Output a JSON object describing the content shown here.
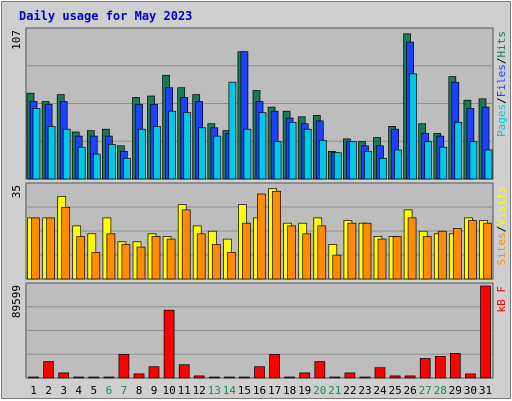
{
  "chart_data": {
    "title": "Daily usage for May 2023",
    "type": "bar",
    "days": [
      "1",
      "2",
      "3",
      "4",
      "5",
      "6",
      "7",
      "8",
      "9",
      "10",
      "11",
      "12",
      "13",
      "14",
      "15",
      "16",
      "17",
      "18",
      "19",
      "20",
      "21",
      "22",
      "23",
      "24",
      "25",
      "26",
      "27",
      "28",
      "29",
      "30",
      "31"
    ],
    "weekend_days": [
      "6",
      "7",
      "13",
      "14",
      "20",
      "21",
      "27",
      "28"
    ],
    "colors": {
      "title": "#0000cc",
      "pages": "#00c8e6",
      "files": "#1e40ff",
      "hits": "#1a7a55",
      "sites": "#ff8c00",
      "visits": "#ffff00",
      "kb": "#ff0000",
      "weekday": "#000000",
      "weekend": "#1a8a50"
    },
    "panels": [
      {
        "name": "hits-files-pages",
        "max_label": "107",
        "ymax": 107,
        "series": [
          {
            "name": "Hits",
            "color": "#1a7a55",
            "values": [
              62,
              56,
              61,
              34,
              35,
              36,
              24,
              59,
              60,
              75,
              66,
              61,
              40,
              35,
              92,
              64,
              52,
              49,
              45,
              46,
              20,
              29,
              27,
              30,
              38,
              105,
              40,
              33,
              74,
              57,
              58
            ]
          },
          {
            "name": "Files",
            "color": "#1e40ff",
            "values": [
              56,
              54,
              56,
              31,
              31,
              31,
              20,
              54,
              54,
              66,
              59,
              56,
              37,
              33,
              92,
              56,
              49,
              44,
              40,
              42,
              19,
              27,
              24,
              24,
              36,
              99,
              33,
              31,
              70,
              51,
              52
            ]
          },
          {
            "name": "Pages",
            "color": "#00c8e6",
            "values": [
              51,
              38,
              36,
              23,
              18,
              25,
              15,
              36,
              38,
              49,
              48,
              37,
              31,
              70,
              36,
              48,
              27,
              41,
              36,
              28,
              19,
              27,
              20,
              15,
              21,
              76,
              27,
              23,
              41,
              27,
              21
            ]
          }
        ],
        "legend": [
          {
            "text": "Pages",
            "color": "#00c8e6"
          },
          {
            "text": "/",
            "color": "#000000"
          },
          {
            "text": "Files",
            "color": "#1e40ff"
          },
          {
            "text": "/",
            "color": "#000000"
          },
          {
            "text": "Hits",
            "color": "#1a7a55"
          }
        ]
      },
      {
        "name": "sites-visits",
        "max_label": "35",
        "ymax": 35,
        "series": [
          {
            "name": "Visits",
            "color": "#ffff00",
            "values": [
              23,
              23,
              31,
              20,
              17,
              23,
              14,
              14,
              17,
              16,
              28,
              20,
              18,
              15,
              28,
              23,
              34,
              21,
              21,
              23,
              13,
              22,
              21,
              16,
              16,
              26,
              18,
              17,
              17,
              23,
              22
            ]
          },
          {
            "name": "Sites",
            "color": "#ff8c00",
            "values": [
              23,
              23,
              27,
              16,
              10,
              17,
              13,
              12,
              16,
              15,
              26,
              17,
              13,
              10,
              21,
              32,
              33,
              20,
              17,
              20,
              9,
              21,
              21,
              15,
              16,
              23,
              16,
              18,
              19,
              22,
              21
            ]
          }
        ],
        "legend": [
          {
            "text": "Sites",
            "color": "#ff8c00"
          },
          {
            "text": "/",
            "color": "#000000"
          },
          {
            "text": "Visits",
            "color": "#ffff00"
          }
        ]
      },
      {
        "name": "kbytes",
        "max_label": "89599",
        "ymax": 89599,
        "series": [
          {
            "name": "kB F",
            "color": "#ff0000",
            "values": [
              1000,
              16000,
              5000,
              1000,
              1000,
              1000,
              23000,
              4000,
              11000,
              66000,
              13000,
              2000,
              1000,
              1000,
              1000,
              11000,
              23000,
              1000,
              5000,
              16000,
              1000,
              5000,
              1000,
              10000,
              2000,
              2000,
              19000,
              21000,
              24000,
              4000,
              89599
            ]
          }
        ],
        "legend": [
          {
            "text": "kB F",
            "color": "#ff0000"
          }
        ]
      }
    ]
  }
}
